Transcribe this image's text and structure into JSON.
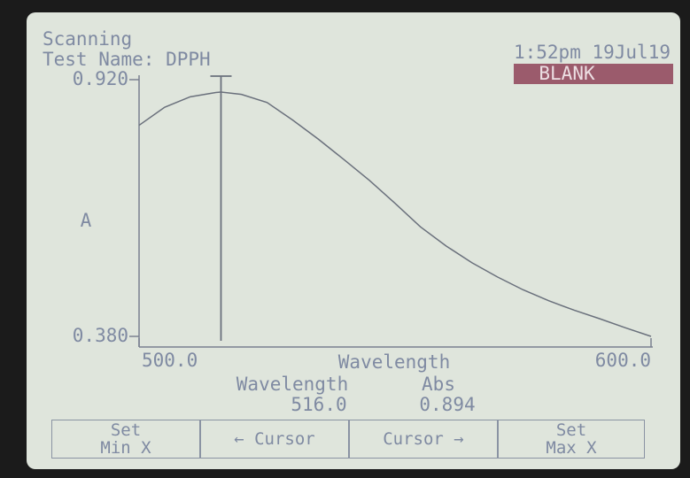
{
  "header": {
    "status": "Scanning",
    "test_name": "Test Name: DPPH",
    "datetime": "1:52pm 19Jul19",
    "mode": "BLANK"
  },
  "chart_data": {
    "type": "line",
    "y_label": "A",
    "x_label": "Wavelength",
    "xlim": [
      500,
      600
    ],
    "ylim": [
      0.38,
      0.92
    ],
    "xticks": [
      {
        "value": 500,
        "label": "500.0"
      },
      {
        "value": 600,
        "label": "600.0"
      }
    ],
    "yticks": [
      {
        "value": 0.38,
        "label": "0.380"
      },
      {
        "value": 0.92,
        "label": "0.920"
      }
    ],
    "x": [
      500,
      505,
      510,
      515,
      516,
      520,
      525,
      530,
      535,
      540,
      545,
      550,
      555,
      560,
      565,
      570,
      575,
      580,
      585,
      590,
      595,
      600
    ],
    "series": [
      {
        "color": "#6a707c",
        "values": [
          0.824,
          0.862,
          0.884,
          0.893,
          0.894,
          0.889,
          0.872,
          0.835,
          0.795,
          0.752,
          0.708,
          0.66,
          0.61,
          0.57,
          0.535,
          0.505,
          0.478,
          0.455,
          0.435,
          0.417,
          0.398,
          0.38
        ]
      }
    ]
  },
  "readout": {
    "wavelength_header": "Wavelength",
    "abs_header": "Abs",
    "wavelength": {
      "value": 516,
      "label": "516.0"
    },
    "abs": {
      "value": 0.894,
      "label": "0.894"
    }
  },
  "buttons": [
    "Set\nMin X",
    "← Cursor",
    "Cursor →",
    "Set\nMax X"
  ]
}
